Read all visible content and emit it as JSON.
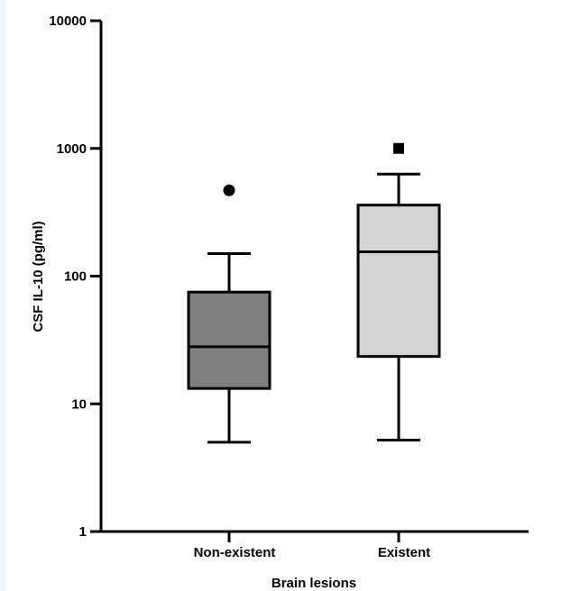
{
  "chart_data": {
    "type": "box",
    "title": "",
    "xlabel": "Brain lesions",
    "ylabel": "CSF IL-10 (pg/ml)",
    "yscale": "log",
    "ylim": [
      1,
      10000
    ],
    "yticks": [
      {
        "value": 1,
        "label": "1"
      },
      {
        "value": 10,
        "label": "10"
      },
      {
        "value": 100,
        "label": "100"
      },
      {
        "value": 1000,
        "label": "1000"
      },
      {
        "value": 10000,
        "label": "10000"
      }
    ],
    "categories": [
      "Non-existent",
      "Existent"
    ],
    "boxes": [
      {
        "name": "Non-existent",
        "min": 5,
        "q1": 13.2,
        "median": 28,
        "q3": 75,
        "max": 150,
        "outliers": [
          470
        ],
        "outlier_marker": "circle",
        "fill": "#7f7f7f"
      },
      {
        "name": "Existent",
        "min": 5.2,
        "q1": 23.5,
        "median": 155,
        "q3": 360,
        "max": 630,
        "outliers": [
          1000
        ],
        "outlier_marker": "square",
        "fill": "#d4d4d4"
      }
    ]
  }
}
